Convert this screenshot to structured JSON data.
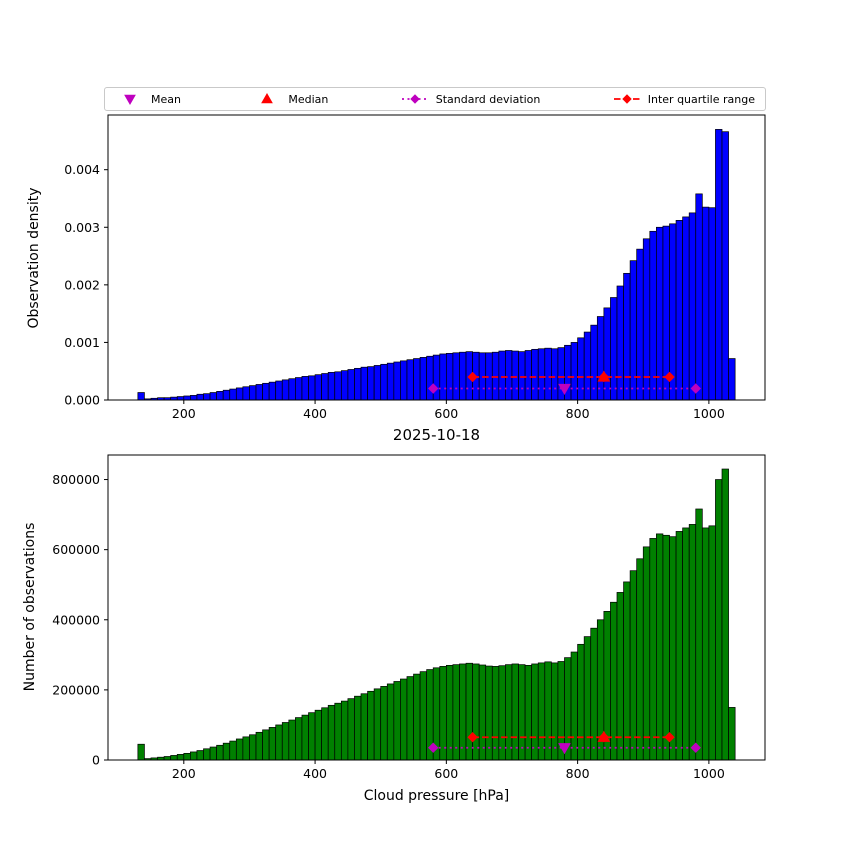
{
  "figure": {
    "title": "2025-10-18",
    "xlabel": "Cloud pressure [hPa]",
    "background": "#ffffff"
  },
  "legend": {
    "items": [
      {
        "label": "Mean",
        "marker": "triangle-down",
        "color": "#bf00bf",
        "line": "none"
      },
      {
        "label": "Median",
        "marker": "triangle-up",
        "color": "#ff0000",
        "line": "none"
      },
      {
        "label": "Standard deviation",
        "marker": "diamond",
        "color": "#bf00bf",
        "line": "dotted"
      },
      {
        "label": "Inter quartile range",
        "marker": "diamond",
        "color": "#ff0000",
        "line": "dashed"
      }
    ]
  },
  "chart_data": [
    {
      "type": "bar",
      "ylabel": "Observation density",
      "bar_color": "#0000ff",
      "bar_edge": "#000000",
      "bin_start": 130,
      "bin_width": 10,
      "values": [
        0.00013,
        2e-05,
        3e-05,
        4e-05,
        4e-05,
        5e-05,
        6e-05,
        7e-05,
        8e-05,
        0.0001,
        0.00011,
        0.00013,
        0.00015,
        0.00017,
        0.00019,
        0.00021,
        0.00023,
        0.00025,
        0.00027,
        0.00029,
        0.00031,
        0.00033,
        0.00035,
        0.00037,
        0.00039,
        0.00041,
        0.00042,
        0.00044,
        0.00046,
        0.00048,
        0.00049,
        0.00051,
        0.00053,
        0.00055,
        0.00057,
        0.00058,
        0.0006,
        0.00062,
        0.00064,
        0.00066,
        0.00068,
        0.0007,
        0.00072,
        0.00074,
        0.00076,
        0.00078,
        0.0008,
        0.00081,
        0.00082,
        0.00083,
        0.00084,
        0.00083,
        0.00082,
        0.00082,
        0.00083,
        0.00085,
        0.00086,
        0.00085,
        0.00084,
        0.00086,
        0.00088,
        0.00089,
        0.0009,
        0.00089,
        0.00091,
        0.00095,
        0.001,
        0.00108,
        0.00118,
        0.0013,
        0.00145,
        0.0016,
        0.00178,
        0.00198,
        0.0022,
        0.00242,
        0.00262,
        0.0028,
        0.00293,
        0.003,
        0.00302,
        0.00306,
        0.00312,
        0.00318,
        0.00325,
        0.00358,
        0.00335,
        0.00334,
        0.0047,
        0.00466,
        0.00072
      ],
      "xlim": [
        84.5,
        1085.5
      ],
      "ylim": [
        0,
        0.00495
      ],
      "xticks": [
        200,
        400,
        600,
        800,
        1000
      ],
      "xtick_labels": [
        "200",
        "400",
        "600",
        "800",
        "1000"
      ],
      "yticks": [
        0,
        0.001,
        0.002,
        0.003,
        0.004
      ],
      "ytick_labels": [
        "0.000",
        "0.001",
        "0.002",
        "0.003",
        "0.004"
      ],
      "markers": {
        "mean": {
          "x": 780,
          "y": 0.0002,
          "color": "#bf00bf"
        },
        "median": {
          "x": 840,
          "y": 0.0004,
          "color": "#ff0000"
        },
        "std": {
          "x1": 580,
          "x2": 980,
          "y": 0.0002,
          "color": "#bf00bf"
        },
        "iqr": {
          "x1": 640,
          "x2": 940,
          "y": 0.0004,
          "color": "#ff0000"
        }
      }
    },
    {
      "type": "bar",
      "ylabel": "Number of observations",
      "bar_color": "#008000",
      "bar_edge": "#000000",
      "bin_start": 130,
      "bin_width": 10,
      "values": [
        45000,
        4000,
        6000,
        8000,
        10000,
        13000,
        16000,
        19000,
        23000,
        27000,
        32000,
        37000,
        42000,
        48000,
        54000,
        60000,
        66000,
        72000,
        79000,
        86000,
        93000,
        100000,
        107000,
        114000,
        121000,
        128000,
        135000,
        142000,
        149000,
        156000,
        162000,
        168000,
        175000,
        182000,
        189000,
        196000,
        203000,
        210000,
        217000,
        224000,
        231000,
        238000,
        245000,
        252000,
        258000,
        263000,
        267000,
        270000,
        272000,
        274000,
        276000,
        274000,
        271000,
        268000,
        267000,
        269000,
        272000,
        274000,
        272000,
        270000,
        274000,
        277000,
        280000,
        277000,
        281000,
        292000,
        308000,
        330000,
        352000,
        376000,
        400000,
        424000,
        450000,
        478000,
        508000,
        540000,
        574000,
        608000,
        632000,
        645000,
        641000,
        637000,
        652000,
        662000,
        672000,
        716000,
        662000,
        668000,
        800000,
        830000,
        150000
      ],
      "xlim": [
        84.5,
        1085.5
      ],
      "ylim": [
        0,
        870000
      ],
      "xticks": [
        200,
        400,
        600,
        800,
        1000
      ],
      "xtick_labels": [
        "200",
        "400",
        "600",
        "800",
        "1000"
      ],
      "yticks": [
        0,
        200000,
        400000,
        600000,
        800000
      ],
      "ytick_labels": [
        "0",
        "200000",
        "400000",
        "600000",
        "800000"
      ],
      "markers": {
        "mean": {
          "x": 780,
          "y": 35000,
          "color": "#bf00bf"
        },
        "median": {
          "x": 840,
          "y": 65000,
          "color": "#ff0000"
        },
        "std": {
          "x1": 580,
          "x2": 980,
          "y": 35000,
          "color": "#bf00bf"
        },
        "iqr": {
          "x1": 640,
          "x2": 940,
          "y": 65000,
          "color": "#ff0000"
        }
      }
    }
  ]
}
